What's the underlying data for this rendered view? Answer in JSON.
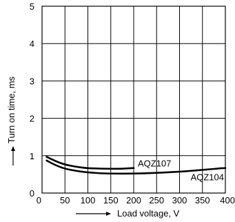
{
  "chart_data": {
    "type": "line",
    "title": "",
    "xlabel": "Load voltage, V",
    "ylabel": "Turn on time, ms",
    "xlim": [
      0,
      400
    ],
    "ylim": [
      0,
      5
    ],
    "x_ticks": [
      0,
      50,
      100,
      150,
      200,
      250,
      300,
      350,
      400
    ],
    "y_ticks": [
      0,
      1,
      2,
      3,
      4,
      5
    ],
    "grid": true,
    "legend": "none",
    "series": [
      {
        "name": "AQZ107",
        "x": [
          10,
          30,
          50,
          75,
          100,
          150,
          175,
          200
        ],
        "y": [
          0.97,
          0.85,
          0.76,
          0.7,
          0.66,
          0.65,
          0.65,
          0.67
        ]
      },
      {
        "name": "AQZ104",
        "x": [
          10,
          30,
          50,
          75,
          100,
          140,
          200,
          250,
          300,
          350,
          400
        ],
        "y": [
          0.87,
          0.74,
          0.65,
          0.59,
          0.55,
          0.52,
          0.52,
          0.54,
          0.57,
          0.62,
          0.67
        ]
      }
    ]
  }
}
